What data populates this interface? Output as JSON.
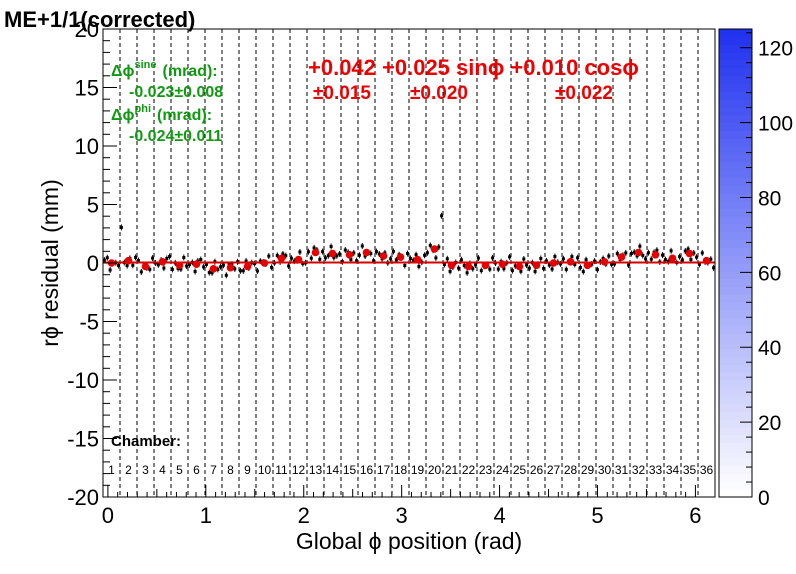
{
  "chart_data": {
    "type": "heatmap",
    "title": "ME+1/1(corrected)",
    "xlabel": "Global ϕ position (rad)",
    "ylabel": "rϕ residual (mm)",
    "xlim": [
      -0.05,
      6.2
    ],
    "ylim": [
      -20,
      20
    ],
    "x_ticks": [
      "0",
      "1",
      "2",
      "3",
      "4",
      "5",
      "6"
    ],
    "y_ticks": [
      "-20",
      "-15",
      "-10",
      "-5",
      "0",
      "5",
      "10",
      "15",
      "20"
    ],
    "colorbar": {
      "min": 0,
      "max": 125,
      "ticks": [
        "0",
        "20",
        "40",
        "60",
        "80",
        "100",
        "120"
      ]
    },
    "fit_text": {
      "line1": "+0.042 +0.025 sinϕ +0.010 cosϕ",
      "err_const": "±0.015",
      "err_sin": "±0.020",
      "err_cos": "±0.022"
    },
    "sine_label": "Δϕ",
    "sine_sup": "sine",
    "sine_unit": "(mrad):",
    "sine_value": "-0.023±0.008",
    "phi_label": "Δϕ",
    "phi_sup": "phi",
    "phi_unit": "(mrad):",
    "phi_value": "-0.024±0.011",
    "chamber_label": "Chamber:",
    "chambers": [
      "1",
      "2",
      "3",
      "4",
      "5",
      "6",
      "7",
      "8",
      "9",
      "10",
      "11",
      "12",
      "13",
      "14",
      "15",
      "16",
      "17",
      "18",
      "19",
      "20",
      "21",
      "22",
      "23",
      "24",
      "25",
      "26",
      "27",
      "28",
      "29",
      "30",
      "31",
      "32",
      "33",
      "34",
      "35",
      "36"
    ],
    "chamber_means": [
      0.0,
      0.2,
      -0.3,
      0.1,
      -0.2,
      -0.1,
      -0.5,
      -0.4,
      -0.3,
      0.0,
      0.4,
      0.3,
      0.9,
      0.8,
      0.7,
      0.9,
      0.6,
      0.5,
      0.3,
      1.2,
      -0.2,
      -0.3,
      -0.2,
      -0.1,
      -0.3,
      -0.2,
      0.0,
      0.1,
      -0.2,
      0.1,
      0.5,
      0.9,
      0.7,
      0.4,
      0.8,
      0.2
    ],
    "fit": {
      "const": 0.042,
      "sin": 0.025,
      "cos": 0.01
    },
    "colors": {
      "fit_line": "#d40000",
      "mean_marker": "#e60000",
      "profile": "#000000",
      "fit_text": "#ee0000",
      "stat_text": "#119911",
      "heat_max": "#2233ee"
    }
  }
}
